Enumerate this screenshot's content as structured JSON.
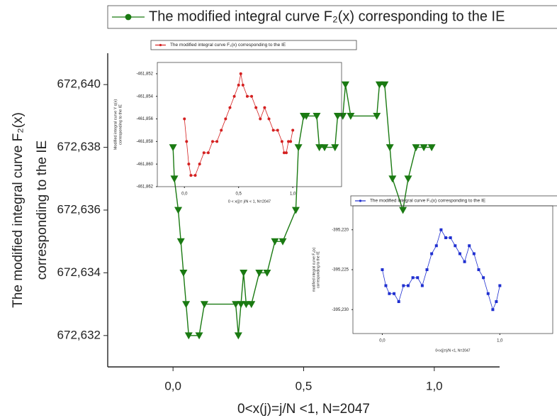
{
  "chart_data": [
    {
      "type": "line",
      "frame": false,
      "xlabel": "0<x(j)=j/N <1, N=2047",
      "ylabel": [
        "The modified integral curve F₂(x)",
        "corresponding to the IE"
      ],
      "xlim": [
        -0.25,
        1.25
      ],
      "ylim": [
        672631,
        672641
      ],
      "xticks": [
        {
          "value": 0,
          "label": "0,0"
        },
        {
          "value": 0.5,
          "label": "0,5"
        },
        {
          "value": 1,
          "label": "1,0"
        }
      ],
      "yticks": [
        {
          "value": 672632,
          "label": "672,632"
        },
        {
          "value": 672634,
          "label": "672,634"
        },
        {
          "value": 672636,
          "label": "672,636"
        },
        {
          "value": 672638,
          "label": "672,638"
        },
        {
          "value": 672640,
          "label": "672,640"
        }
      ],
      "series": [
        {
          "name": "The modified integral curve F₂(x) corresponding to the IE",
          "color": "#1a7a12",
          "marker": "triangle-down",
          "x": [
            0,
            0.005,
            0.02,
            0.03,
            0.04,
            0.05,
            0.06,
            0.1,
            0.12,
            0.24,
            0.25,
            0.26,
            0.27,
            0.28,
            0.3,
            0.33,
            0.36,
            0.39,
            0.42,
            0.47,
            0.48,
            0.5,
            0.51,
            0.55,
            0.56,
            0.58,
            0.62,
            0.63,
            0.65,
            0.66,
            0.68,
            0.78,
            0.79,
            0.81,
            0.83,
            0.84,
            0.88,
            0.9,
            0.93,
            0.96,
            0.99
          ],
          "values": [
            672638,
            672637,
            672636,
            672635,
            672634,
            672633,
            672632,
            672632,
            672633,
            672633,
            672632,
            672633,
            672634,
            672633,
            672633,
            672634,
            672634,
            672635,
            672635,
            672636,
            672638,
            672639,
            672639,
            672639,
            672638,
            672638,
            672638,
            672639,
            672639,
            672640,
            672639,
            672639,
            672640,
            672640,
            672638,
            672637,
            672636,
            672637,
            672638,
            672638,
            672638
          ]
        }
      ]
    },
    {
      "type": "line",
      "frame": true,
      "xlabel": "0 < x(j)= j/N < 1, N=2047",
      "ylabel": [
        "Modified integral curve Y q(x)",
        "corresponding to the IE"
      ],
      "xlim": [
        -0.25,
        1.45
      ],
      "ylim": [
        -461862,
        -461851
      ],
      "xticks": [
        {
          "value": 0,
          "label": "0,0"
        },
        {
          "value": 0.5,
          "label": "0,5"
        },
        {
          "value": 1,
          "label": "1,0"
        }
      ],
      "yticks": [
        {
          "value": -461862,
          "label": "-461,862"
        },
        {
          "value": -461860,
          "label": "-461,860"
        },
        {
          "value": -461858,
          "label": "-461,858"
        },
        {
          "value": -461856,
          "label": "-461,856"
        },
        {
          "value": -461854,
          "label": "-461,854"
        },
        {
          "value": -461852,
          "label": "-461,852"
        }
      ],
      "series": [
        {
          "name": "The modified integral curve F₂(x) corresponding to the IE",
          "color": "#d42020",
          "marker": "circle",
          "x": [
            0,
            0.02,
            0.04,
            0.06,
            0.1,
            0.14,
            0.18,
            0.22,
            0.26,
            0.3,
            0.34,
            0.38,
            0.42,
            0.46,
            0.5,
            0.52,
            0.54,
            0.58,
            0.62,
            0.66,
            0.7,
            0.74,
            0.78,
            0.82,
            0.86,
            0.9,
            0.92,
            0.94,
            0.96,
            0.98,
            1
          ],
          "values": [
            -461856,
            -461858,
            -461860,
            -461861,
            -461861,
            -461860,
            -461859,
            -461859,
            -461858,
            -461858,
            -461857,
            -461856,
            -461855,
            -461854,
            -461853,
            -461852,
            -461853,
            -461854,
            -461854,
            -461855,
            -461856,
            -461855,
            -461856,
            -461857,
            -461857,
            -461858,
            -461859,
            -461859,
            -461858,
            -461858,
            -461857
          ]
        }
      ]
    },
    {
      "type": "line",
      "frame": true,
      "xlabel": "0<x(j)=j/N <1, N=2047",
      "ylabel": [
        "modified integral curve F₂(x)",
        "corresponding to the IE"
      ],
      "xlim": [
        -0.25,
        1.45
      ],
      "ylim": [
        -395233,
        -395217
      ],
      "xticks": [
        {
          "value": 0,
          "label": "0,0"
        },
        {
          "value": 1,
          "label": "1,0"
        }
      ],
      "yticks": [
        {
          "value": -395230,
          "label": "-395,230"
        },
        {
          "value": -395225,
          "label": "-395,225"
        },
        {
          "value": -395220,
          "label": "-395,220"
        }
      ],
      "series": [
        {
          "name": "The modified integral curve F₂(x) corresponding to the IE",
          "color": "#1f2fd0",
          "marker": "square",
          "x": [
            0,
            0.03,
            0.06,
            0.1,
            0.14,
            0.18,
            0.22,
            0.26,
            0.3,
            0.34,
            0.38,
            0.42,
            0.46,
            0.5,
            0.54,
            0.58,
            0.62,
            0.66,
            0.7,
            0.74,
            0.78,
            0.82,
            0.86,
            0.9,
            0.94,
            0.97,
            1
          ],
          "values": [
            -395225,
            -395227,
            -395228,
            -395228,
            -395229,
            -395227,
            -395227,
            -395226,
            -395226,
            -395227,
            -395225,
            -395223,
            -395222,
            -395220,
            -395221,
            -395221,
            -395222,
            -395223,
            -395224,
            -395222,
            -395223,
            -395225,
            -395226,
            -395228,
            -395230,
            -395229,
            -395227
          ]
        }
      ]
    }
  ]
}
